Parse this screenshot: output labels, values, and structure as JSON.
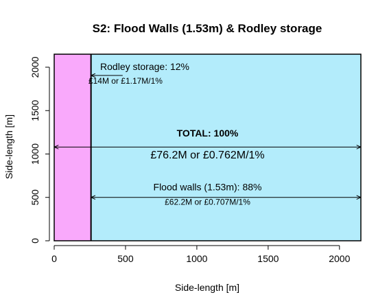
{
  "chart_data": {
    "type": "area",
    "title": "S2: Flood Walls (1.53m) & Rodley storage",
    "xlabel": "Side-length [m]",
    "ylabel": "Side-length [m]",
    "xlim": [
      0,
      2150
    ],
    "ylim": [
      0,
      2150
    ],
    "xticks": [
      0,
      500,
      1000,
      1500,
      2000
    ],
    "yticks": [
      0,
      500,
      1000,
      1500,
      2000
    ],
    "grid": false,
    "series": [
      {
        "label": "Rodley storage: 12%",
        "cost_text": "£14M or £1.17M/1%",
        "share_percent": 12,
        "x_range": [
          0,
          258
        ],
        "color": "#f9a9fb"
      },
      {
        "label": "Flood walls (1.53m): 88%",
        "cost_text": "£62.2M or £0.707M/1%",
        "share_percent": 88,
        "x_range": [
          258,
          2150
        ],
        "color": "#b3ecfb"
      }
    ],
    "total": {
      "label": "TOTAL: 100%",
      "cost_text": "£76.2M or £0.762M/1%",
      "y": 1080
    },
    "arrows": [
      {
        "name": "rodley-arrow",
        "x_from": 480,
        "x_to": 258,
        "y": 1905,
        "heads": "end"
      },
      {
        "name": "total-arrow",
        "x_from": 0,
        "x_to": 2150,
        "y": 1080,
        "heads": "both"
      },
      {
        "name": "flood-walls-arrow",
        "x_from": 258,
        "x_to": 2150,
        "y": 500,
        "heads": "both"
      }
    ],
    "annotations": [
      {
        "name": "rodley-label",
        "text": "Rodley storage: 12%",
        "x": 635,
        "y": 1970,
        "weight": "normal",
        "size": "medium"
      },
      {
        "name": "rodley-cost",
        "text": "£14M or £1.17M/1%",
        "x": 500,
        "y": 1810,
        "weight": "normal",
        "size": "small"
      },
      {
        "name": "total-label",
        "text": "TOTAL: 100%",
        "x": 1075,
        "y": 1200,
        "weight": "bold",
        "size": "medium"
      },
      {
        "name": "total-cost",
        "text": "£76.2M or £0.762M/1%",
        "x": 1075,
        "y": 950,
        "weight": "normal",
        "size": "large"
      },
      {
        "name": "flood-walls-label",
        "text": "Flood walls (1.53m): 88%",
        "x": 1075,
        "y": 580,
        "weight": "normal",
        "size": "medium"
      },
      {
        "name": "flood-walls-cost",
        "text": "£62.2M or £0.707M/1%",
        "x": 1075,
        "y": 415,
        "weight": "normal",
        "size": "small"
      }
    ]
  }
}
